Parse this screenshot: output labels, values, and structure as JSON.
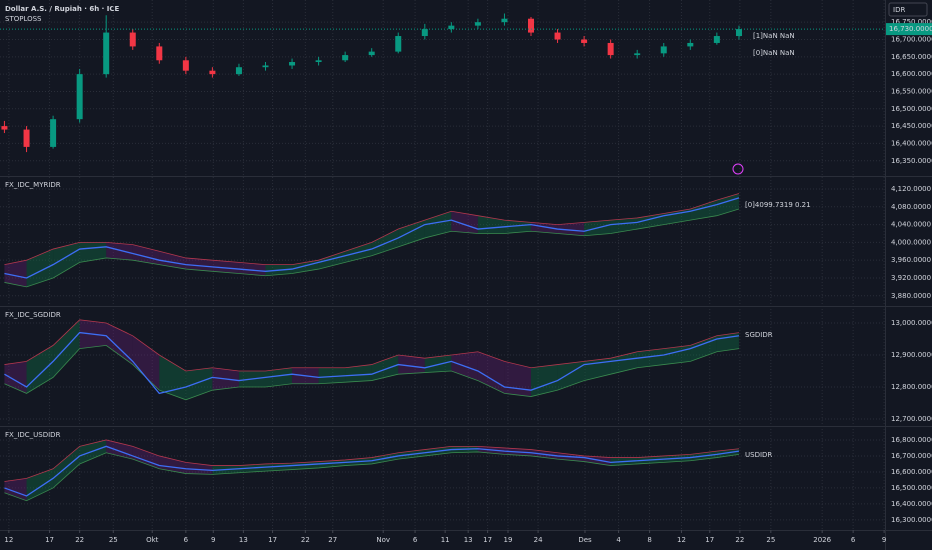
{
  "chart_data": [
    {
      "type": "candlestick",
      "title": "Dollar A.S. / Rupiah · 6h · ICE",
      "subtitle": "STOPLOSS",
      "currency": "IDR",
      "last_price": {
        "value": 16730,
        "label": "16,730.0000"
      },
      "annotations": [
        "[1]NaN NaN",
        "[0]NaN NaN"
      ],
      "up_color": "#089981",
      "down_color": "#f23645",
      "grid": true,
      "xlim": [
        0,
        100
      ],
      "xticks": [
        {
          "value": 1,
          "label": "12"
        },
        {
          "value": 5.6,
          "label": "17"
        },
        {
          "value": 9,
          "label": "22"
        },
        {
          "value": 12.8,
          "label": "25"
        },
        {
          "value": 17.2,
          "label": "Okt"
        },
        {
          "value": 21,
          "label": "6"
        },
        {
          "value": 24.1,
          "label": "9"
        },
        {
          "value": 27.5,
          "label": "13"
        },
        {
          "value": 30.8,
          "label": "17"
        },
        {
          "value": 34.5,
          "label": "22"
        },
        {
          "value": 37.6,
          "label": "27"
        },
        {
          "value": 43.3,
          "label": "Nov"
        },
        {
          "value": 46.9,
          "label": "6"
        },
        {
          "value": 50.3,
          "label": "11"
        },
        {
          "value": 52.9,
          "label": "13"
        },
        {
          "value": 55.1,
          "label": "17"
        },
        {
          "value": 57.4,
          "label": "19"
        },
        {
          "value": 60.8,
          "label": "24"
        },
        {
          "value": 66.1,
          "label": "Des"
        },
        {
          "value": 69.9,
          "label": "4"
        },
        {
          "value": 73.4,
          "label": "8"
        },
        {
          "value": 77,
          "label": "12"
        },
        {
          "value": 80.2,
          "label": "17"
        },
        {
          "value": 83.6,
          "label": "22"
        },
        {
          "value": 87.1,
          "label": "25"
        },
        {
          "value": 92.9,
          "label": "2026"
        },
        {
          "value": 96.4,
          "label": "6"
        },
        {
          "value": 99.9,
          "label": "9"
        }
      ],
      "ylim": [
        16306,
        16814
      ],
      "yticks": [
        {
          "value": 16350,
          "label": "16,350.0000"
        },
        {
          "value": 16400,
          "label": "16,400.0000"
        },
        {
          "value": 16450,
          "label": "16,450.0000"
        },
        {
          "value": 16500,
          "label": "16,500.0000"
        },
        {
          "value": 16550,
          "label": "16,550.0000"
        },
        {
          "value": 16600,
          "label": "16,600.0000"
        },
        {
          "value": 16650,
          "label": "16,650.0000"
        },
        {
          "value": 16700,
          "label": "16,700.0000"
        },
        {
          "value": 16750,
          "label": "16,750.0000"
        }
      ],
      "x": [
        0.5,
        3,
        6,
        9,
        12,
        15,
        18,
        21,
        24,
        27,
        30,
        33,
        36,
        39,
        42,
        45,
        48,
        51,
        54,
        57,
        60,
        63,
        66,
        69,
        72,
        75,
        78,
        81,
        83.5
      ],
      "open": [
        16450,
        16440,
        16390,
        16470,
        16600,
        16720,
        16680,
        16640,
        16610,
        16600,
        16620,
        16625,
        16635,
        16640,
        16655,
        16665,
        16710,
        16730,
        16740,
        16750,
        16760,
        16720,
        16700,
        16690,
        16655,
        16660,
        16680,
        16690,
        16710
      ],
      "high": [
        16465,
        16450,
        16480,
        16615,
        16770,
        16730,
        16690,
        16650,
        16620,
        16630,
        16635,
        16645,
        16650,
        16665,
        16675,
        16720,
        16745,
        16750,
        16760,
        16775,
        16765,
        16730,
        16710,
        16700,
        16670,
        16690,
        16700,
        16720,
        16740
      ],
      "low": [
        16430,
        16375,
        16385,
        16460,
        16590,
        16670,
        16630,
        16600,
        16590,
        16595,
        16610,
        16615,
        16625,
        16635,
        16650,
        16660,
        16700,
        16720,
        16730,
        16740,
        16710,
        16690,
        16680,
        16645,
        16645,
        16650,
        16670,
        16685,
        16700
      ],
      "close": [
        16440,
        16390,
        16470,
        16600,
        16720,
        16680,
        16640,
        16610,
        16600,
        16620,
        16625,
        16635,
        16640,
        16655,
        16665,
        16710,
        16730,
        16740,
        16750,
        16760,
        16720,
        16700,
        16690,
        16655,
        16660,
        16680,
        16690,
        16710,
        16730
      ]
    },
    {
      "type": "line",
      "title": "FX_IDC_MYRIDR",
      "annotations": [
        "[0]4099.7319 0.21"
      ],
      "grid": true,
      "ylim": [
        3857,
        4147
      ],
      "yticks": [
        {
          "value": 3880,
          "label": "3,880.0000"
        },
        {
          "value": 3920,
          "label": "3,920.0000"
        },
        {
          "value": 3960,
          "label": "3,960.0000"
        },
        {
          "value": 4000,
          "label": "4,000.0000"
        },
        {
          "value": 4040,
          "label": "4,040.0000"
        },
        {
          "value": 4080,
          "label": "4,080.0000"
        },
        {
          "value": 4120,
          "label": "4,120.0000"
        }
      ],
      "x": [
        0.5,
        3,
        6,
        9,
        12,
        15,
        18,
        21,
        24,
        27,
        30,
        33,
        36,
        39,
        42,
        45,
        48,
        51,
        54,
        57,
        60,
        63,
        66,
        69,
        72,
        75,
        78,
        81,
        83.5
      ],
      "series": [
        {
          "color": "#3d6ef5",
          "values": [
            3930,
            3920,
            3950,
            3985,
            3990,
            3975,
            3960,
            3950,
            3945,
            3940,
            3935,
            3940,
            3955,
            3970,
            3985,
            4010,
            4040,
            4050,
            4030,
            4035,
            4040,
            4030,
            4025,
            4040,
            4045,
            4060,
            4070,
            4085,
            4100
          ]
        },
        {
          "color": "#b2374d",
          "values": [
            3950,
            3960,
            3985,
            4000,
            4000,
            3995,
            3980,
            3965,
            3960,
            3955,
            3950,
            3950,
            3960,
            3980,
            4000,
            4030,
            4050,
            4070,
            4060,
            4050,
            4045,
            4040,
            4045,
            4050,
            4055,
            4065,
            4075,
            4095,
            4110
          ]
        },
        {
          "color": "#3a8a4f",
          "values": [
            3910,
            3900,
            3920,
            3955,
            3965,
            3960,
            3950,
            3940,
            3935,
            3930,
            3925,
            3930,
            3940,
            3955,
            3970,
            3990,
            4010,
            4025,
            4020,
            4020,
            4025,
            4020,
            4015,
            4020,
            4030,
            4040,
            4050,
            4060,
            4075
          ]
        }
      ]
    },
    {
      "type": "line",
      "title": "FX_IDC_SGDIDR",
      "annotations": [
        "SGDIDR"
      ],
      "grid": true,
      "ylim": [
        12678,
        13050
      ],
      "yticks": [
        {
          "value": 12700,
          "label": "12,700.0000"
        },
        {
          "value": 12800,
          "label": "12,800.0000"
        },
        {
          "value": 12900,
          "label": "12,900.0000"
        },
        {
          "value": 13000,
          "label": "13,000.0000"
        }
      ],
      "x": [
        0.5,
        3,
        6,
        9,
        12,
        15,
        18,
        21,
        24,
        27,
        30,
        33,
        36,
        39,
        42,
        45,
        48,
        51,
        54,
        57,
        60,
        63,
        66,
        69,
        72,
        75,
        78,
        81,
        83.5
      ],
      "series": [
        {
          "color": "#3d6ef5",
          "values": [
            12840,
            12800,
            12880,
            12970,
            12960,
            12880,
            12780,
            12800,
            12830,
            12820,
            12830,
            12840,
            12830,
            12835,
            12840,
            12870,
            12860,
            12880,
            12850,
            12800,
            12790,
            12820,
            12870,
            12880,
            12890,
            12900,
            12920,
            12950,
            12960
          ]
        },
        {
          "color": "#b2374d",
          "values": [
            12870,
            12880,
            12930,
            13010,
            13000,
            12960,
            12900,
            12850,
            12860,
            12850,
            12850,
            12860,
            12860,
            12860,
            12870,
            12900,
            12890,
            12900,
            12910,
            12880,
            12860,
            12870,
            12880,
            12890,
            12910,
            12920,
            12930,
            12960,
            12970
          ]
        },
        {
          "color": "#3a8a4f",
          "values": [
            12810,
            12780,
            12830,
            12920,
            12930,
            12870,
            12790,
            12760,
            12790,
            12800,
            12800,
            12810,
            12810,
            12815,
            12820,
            12840,
            12845,
            12850,
            12820,
            12780,
            12770,
            12790,
            12820,
            12840,
            12860,
            12870,
            12880,
            12910,
            12920
          ]
        }
      ]
    },
    {
      "type": "line",
      "title": "FX_IDC_USDIDR",
      "annotations": [
        "USDIDR"
      ],
      "grid": true,
      "ylim": [
        16237,
        16881
      ],
      "yticks": [
        {
          "value": 16300,
          "label": "16,300.0000"
        },
        {
          "value": 16400,
          "label": "16,400.0000"
        },
        {
          "value": 16500,
          "label": "16,500.0000"
        },
        {
          "value": 16600,
          "label": "16,600.0000"
        },
        {
          "value": 16700,
          "label": "16,700.0000"
        },
        {
          "value": 16800,
          "label": "16,800.0000"
        }
      ],
      "x": [
        0.5,
        3,
        6,
        9,
        12,
        15,
        18,
        21,
        24,
        27,
        30,
        33,
        36,
        39,
        42,
        45,
        48,
        51,
        54,
        57,
        60,
        63,
        66,
        69,
        72,
        75,
        78,
        81,
        83.5
      ],
      "series": [
        {
          "color": "#3d6ef5",
          "values": [
            16500,
            16450,
            16560,
            16700,
            16760,
            16700,
            16640,
            16620,
            16610,
            16620,
            16630,
            16640,
            16650,
            16660,
            16670,
            16700,
            16720,
            16740,
            16745,
            16730,
            16720,
            16700,
            16690,
            16660,
            16670,
            16680,
            16690,
            16710,
            16730
          ]
        },
        {
          "color": "#b2374d",
          "values": [
            16540,
            16560,
            16620,
            16760,
            16800,
            16760,
            16700,
            16660,
            16640,
            16640,
            16650,
            16655,
            16665,
            16675,
            16690,
            16720,
            16740,
            16760,
            16760,
            16750,
            16740,
            16720,
            16700,
            16690,
            16690,
            16700,
            16710,
            16730,
            16745
          ]
        },
        {
          "color": "#3a8a4f",
          "values": [
            16470,
            16420,
            16500,
            16650,
            16720,
            16680,
            16620,
            16590,
            16585,
            16595,
            16605,
            16615,
            16625,
            16640,
            16650,
            16680,
            16700,
            16720,
            16725,
            16710,
            16700,
            16680,
            16665,
            16640,
            16650,
            16660,
            16670,
            16690,
            16710
          ]
        }
      ]
    }
  ]
}
